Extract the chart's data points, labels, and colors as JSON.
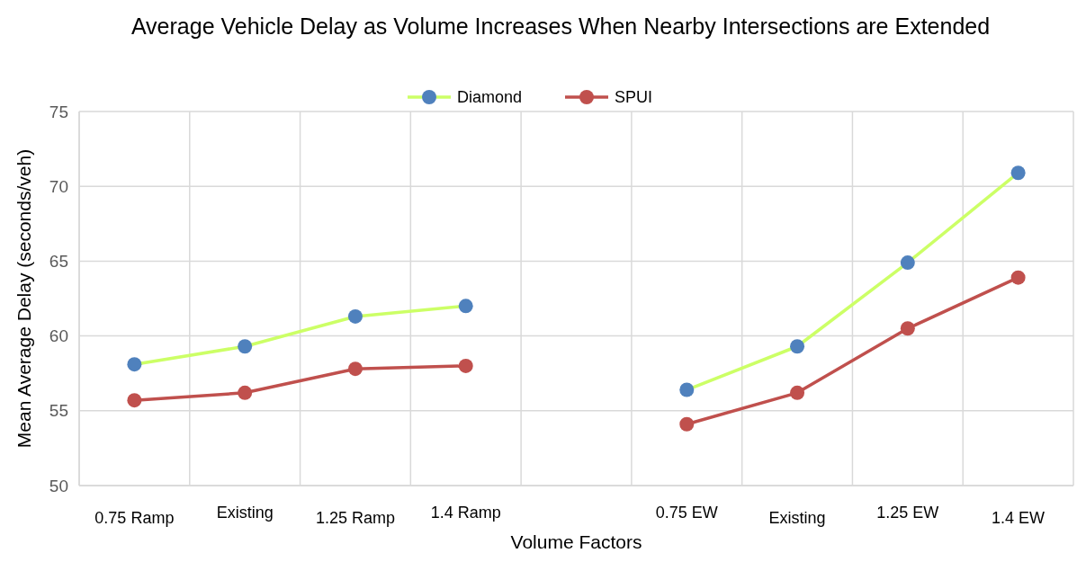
{
  "chart_data": {
    "type": "line",
    "title": "Average Vehicle Delay as Volume Increases When Nearby Intersections are Extended",
    "xlabel": "Volume Factors",
    "ylabel": "Mean Average Delay (seconds/veh)",
    "categories": [
      "0.75 Ramp",
      "Existing",
      "1.25 Ramp",
      "1.4 Ramp",
      null,
      "0.75 EW",
      "Existing",
      "1.25 EW",
      "1.4 EW"
    ],
    "series": [
      {
        "name": "Diamond",
        "color": "#ccff66",
        "values": [
          58.1,
          59.3,
          61.3,
          62.0,
          null,
          56.4,
          59.3,
          64.9,
          70.9
        ]
      },
      {
        "name": "SPUI",
        "color": "#c0504d",
        "values": [
          55.7,
          56.2,
          57.8,
          58.0,
          null,
          54.1,
          56.2,
          60.5,
          63.9
        ]
      }
    ],
    "ylim": [
      50,
      75
    ],
    "yticks": [
      50,
      55,
      60,
      65,
      70,
      75
    ],
    "grid": true,
    "legend": "top",
    "marker": "circle"
  }
}
